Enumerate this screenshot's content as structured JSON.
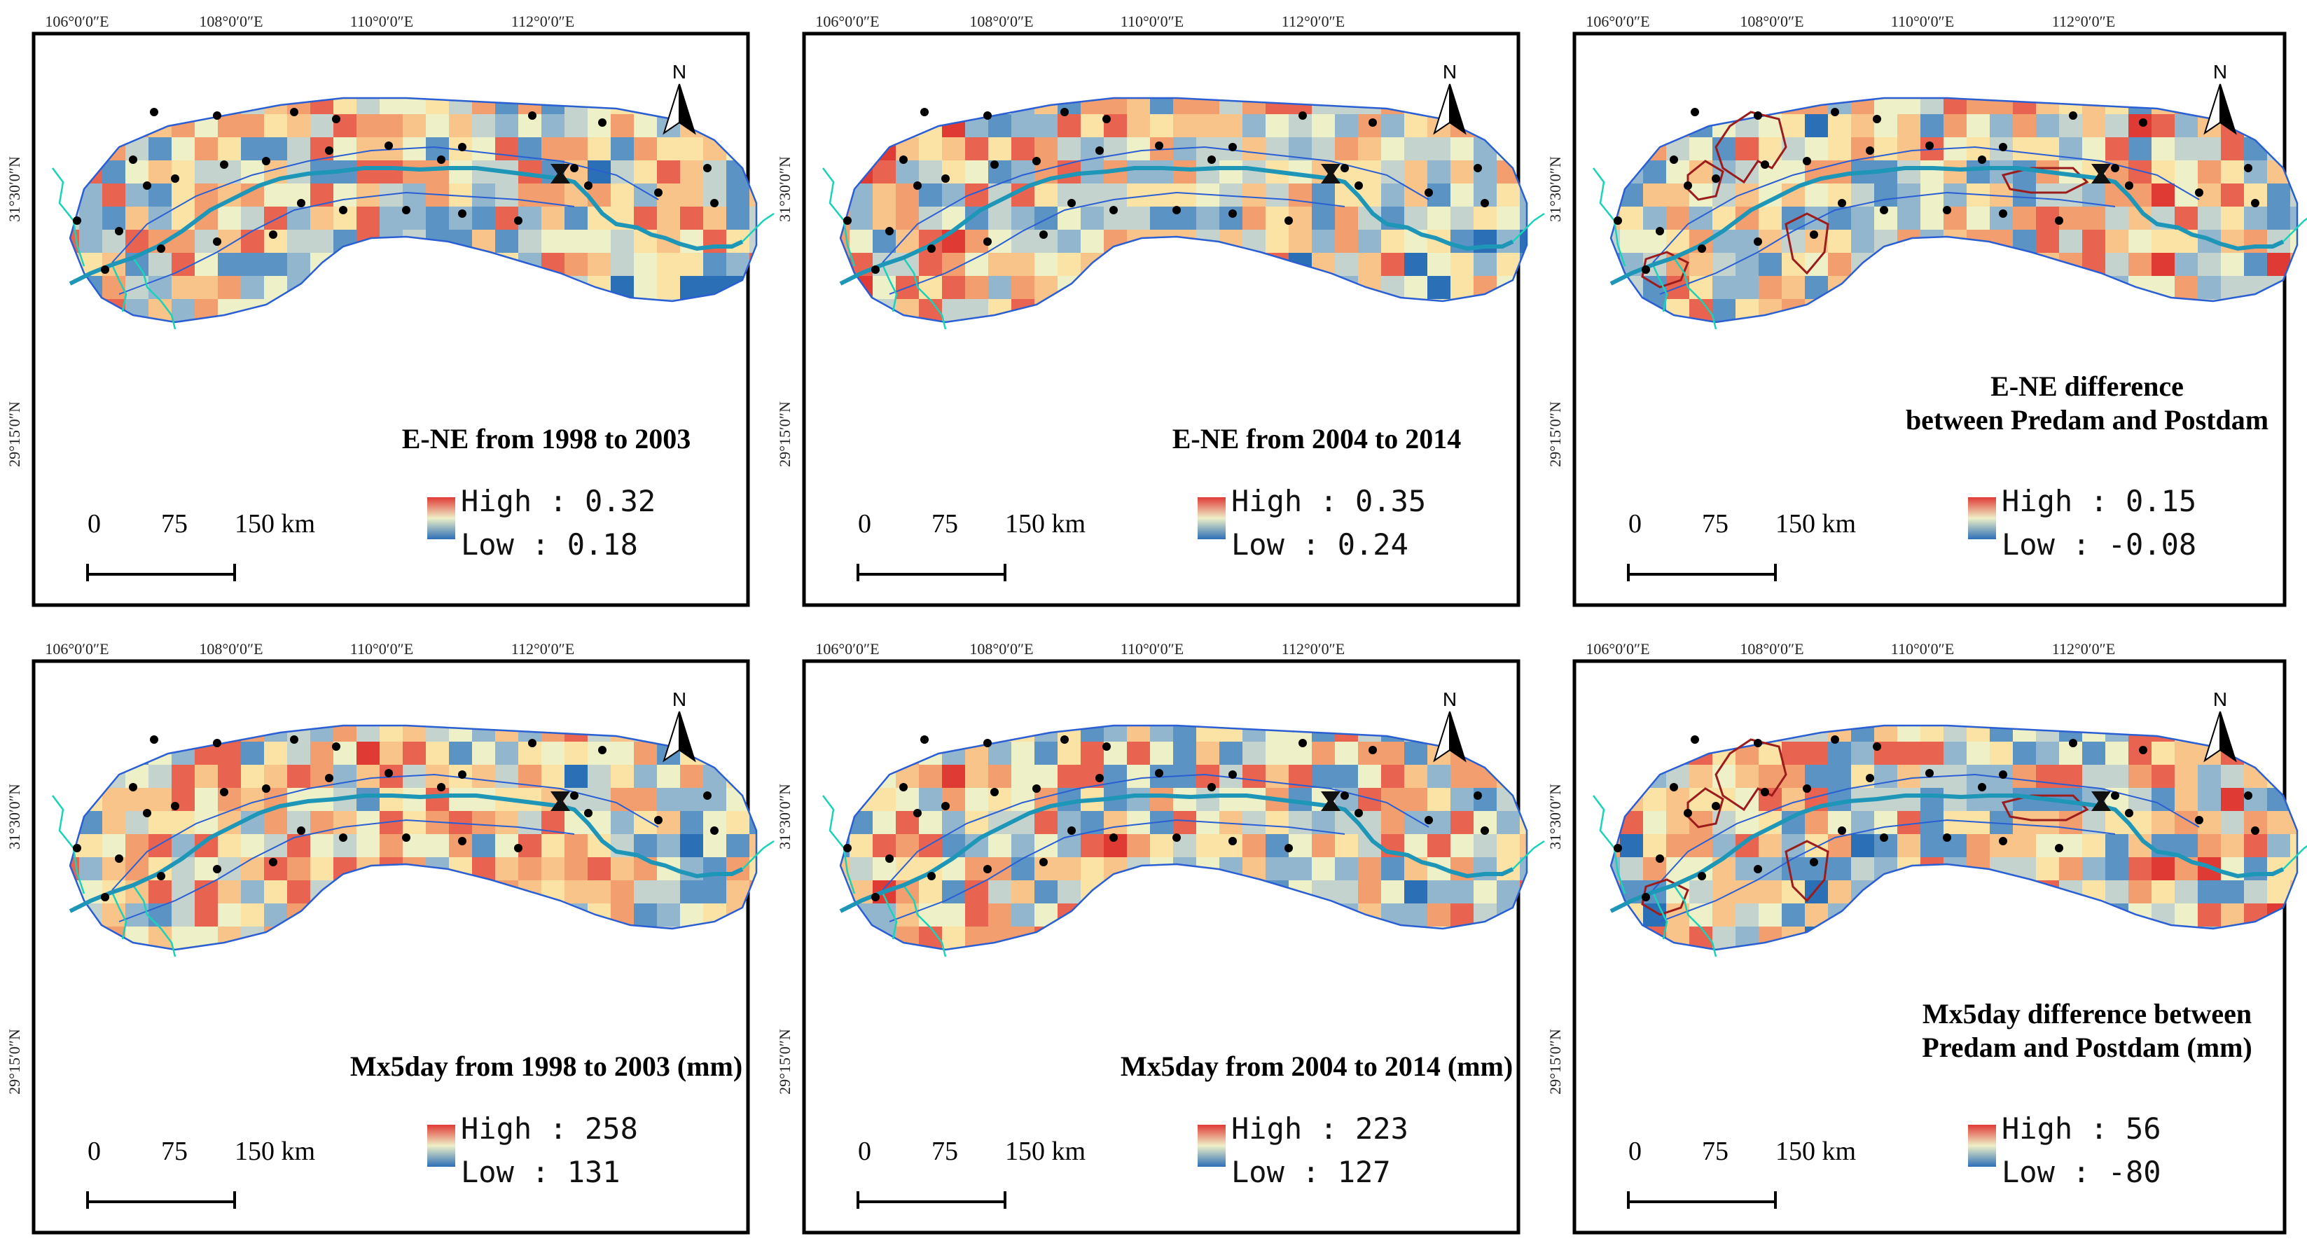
{
  "figure": {
    "colors": {
      "ramp": [
        "#2b6fb6",
        "#5b93c4",
        "#93b6cf",
        "#c5d3cf",
        "#eef0c8",
        "#fbe3a6",
        "#f9c489",
        "#f29e6e",
        "#e86450",
        "#e03a35"
      ],
      "boundary": "#2a5fd4",
      "river": "#1e96b7",
      "tributary": "#19d3b8",
      "sig_contour": "#9b1c1c",
      "station": "#000000"
    },
    "longitude_labels": [
      "106°0′0″E",
      "108°0′0″E",
      "110°0′0″E",
      "112°0′0″E"
    ],
    "latitude_labels": [
      "31°30′0″N",
      "29°15′0″N"
    ],
    "north_label": "N",
    "scale_bar": {
      "ticks": [
        "0",
        "75",
        "150 km"
      ]
    },
    "legend": {
      "high_prefix": "High",
      "low_prefix": "Low",
      "sep": ":"
    },
    "panels": [
      {
        "id": "ene-1998-2003",
        "title_lines": [
          "E-NE from 1998 to 2003"
        ],
        "high": "0.32",
        "low": "0.18",
        "bias": -0.05,
        "seed": 11,
        "contours": false
      },
      {
        "id": "ene-2004-2014",
        "title_lines": [
          "E-NE from 2004 to 2014"
        ],
        "high": "0.35",
        "low": "0.24",
        "bias": -0.15,
        "seed": 23,
        "contours": false
      },
      {
        "id": "ene-difference",
        "title_lines": [
          "E-NE difference",
          "between Predam and Postdam"
        ],
        "high": "0.15",
        "low": "-0.08",
        "bias": 0.05,
        "seed": 37,
        "contours": true
      },
      {
        "id": "mx5day-1998-2003",
        "title_lines": [
          "Mx5day from 1998 to 2003 (mm)"
        ],
        "high": "258",
        "low": "131",
        "bias": -0.1,
        "seed": 41,
        "contours": false
      },
      {
        "id": "mx5day-2004-2014",
        "title_lines": [
          "Mx5day from 2004 to 2014 (mm)"
        ],
        "high": "223",
        "low": "127",
        "bias": -0.05,
        "seed": 53,
        "contours": false
      },
      {
        "id": "mx5day-difference",
        "title_lines": [
          "Mx5day difference  between",
          "Predam and Postdam (mm)"
        ],
        "high": "56",
        "low": "-80",
        "bias": 0.1,
        "seed": 67,
        "contours": true
      }
    ]
  }
}
